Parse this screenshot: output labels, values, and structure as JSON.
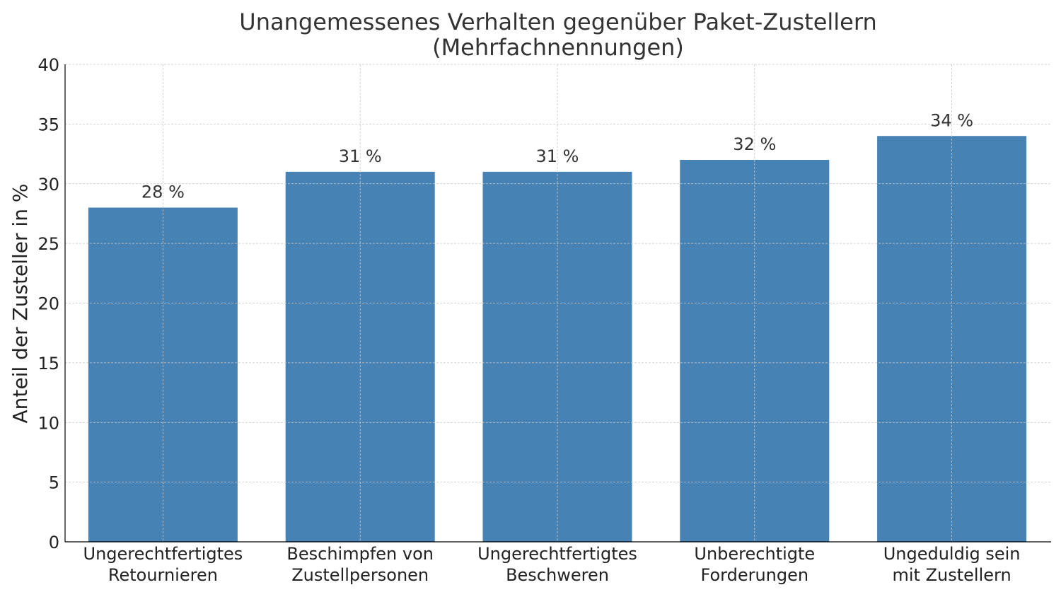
{
  "chart_data": {
    "type": "bar",
    "title": "Unangemessenes Verhalten gegenüber Paket-Zustellern\n(Mehrfachnennungen)",
    "xlabel": "",
    "ylabel": "Anteil der Zusteller in %",
    "ylim": [
      0,
      40
    ],
    "yticks": [
      0,
      5,
      10,
      15,
      20,
      25,
      30,
      35,
      40
    ],
    "grid": true,
    "bar_color": "#4682b4",
    "categories": [
      "Ungerechtfertigtes\nRetournieren",
      "Beschimpfen von\nZustellpersonen",
      "Ungerechtfertigtes\nBeschweren",
      "Unberechtigte\nForderungen",
      "Ungeduldig sein\nmit Zustellern"
    ],
    "values": [
      28,
      31,
      31,
      32,
      34
    ],
    "data_labels": [
      "28 %",
      "31 %",
      "31 %",
      "32 %",
      "34 %"
    ]
  }
}
